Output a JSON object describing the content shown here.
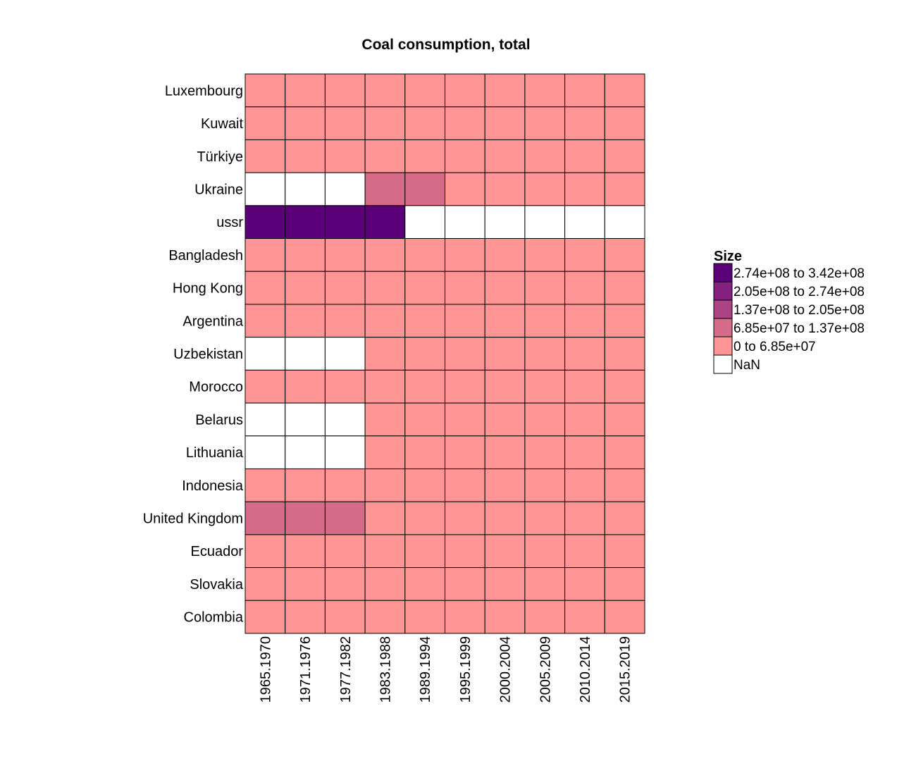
{
  "chart_data": {
    "type": "heatmap",
    "title": "Coal consumption, total",
    "rows": [
      "Luxembourg",
      "Kuwait",
      "Türkiye",
      "Ukraine",
      "ussr",
      "Bangladesh",
      "Hong Kong",
      "Argentina",
      "Uzbekistan",
      "Morocco",
      "Belarus",
      "Lithuania",
      "Indonesia",
      "United Kingdom",
      "Ecuador",
      "Slovakia",
      "Colombia"
    ],
    "columns": [
      "1965.1970",
      "1971.1976",
      "1977.1982",
      "1983.1988",
      "1989.1994",
      "1995.1999",
      "2000.2004",
      "2005.2009",
      "2010.2014",
      "2015.2019"
    ],
    "cell_bins": [
      [
        0,
        0,
        0,
        0,
        0,
        0,
        0,
        0,
        0,
        0
      ],
      [
        0,
        0,
        0,
        0,
        0,
        0,
        0,
        0,
        0,
        0
      ],
      [
        0,
        0,
        0,
        0,
        0,
        0,
        0,
        0,
        0,
        0
      ],
      [
        -1,
        -1,
        -1,
        1,
        1,
        0,
        0,
        0,
        0,
        0
      ],
      [
        4,
        4,
        4,
        4,
        -1,
        -1,
        -1,
        -1,
        -1,
        -1
      ],
      [
        0,
        0,
        0,
        0,
        0,
        0,
        0,
        0,
        0,
        0
      ],
      [
        0,
        0,
        0,
        0,
        0,
        0,
        0,
        0,
        0,
        0
      ],
      [
        0,
        0,
        0,
        0,
        0,
        0,
        0,
        0,
        0,
        0
      ],
      [
        -1,
        -1,
        -1,
        0,
        0,
        0,
        0,
        0,
        0,
        0
      ],
      [
        0,
        0,
        0,
        0,
        0,
        0,
        0,
        0,
        0,
        0
      ],
      [
        -1,
        -1,
        -1,
        0,
        0,
        0,
        0,
        0,
        0,
        0
      ],
      [
        -1,
        -1,
        -1,
        0,
        0,
        0,
        0,
        0,
        0,
        0
      ],
      [
        0,
        0,
        0,
        0,
        0,
        0,
        0,
        0,
        0,
        0
      ],
      [
        1,
        1,
        1,
        0,
        0,
        0,
        0,
        0,
        0,
        0
      ],
      [
        0,
        0,
        0,
        0,
        0,
        0,
        0,
        0,
        0,
        0
      ],
      [
        0,
        0,
        0,
        0,
        0,
        0,
        0,
        0,
        0,
        0
      ],
      [
        0,
        0,
        0,
        0,
        0,
        0,
        0,
        0,
        0,
        0
      ]
    ],
    "legend": {
      "title": "Size",
      "placement": "right",
      "items": [
        {
          "label": "2.74e+08 to 3.42e+08",
          "color": "#5c007a",
          "bin": 4
        },
        {
          "label": "2.05e+08 to 2.74e+08",
          "color": "#83217f",
          "bin": 3
        },
        {
          "label": "1.37e+08 to 2.05e+08",
          "color": "#aa4484",
          "bin": 2
        },
        {
          "label": "6.85e+07 to 1.37e+08",
          "color": "#d56b88",
          "bin": 1
        },
        {
          "label": "0 to 6.85e+07",
          "color": "#ff9595",
          "bin": 0
        },
        {
          "label": "NaN",
          "color": "#ffffff",
          "bin": -1
        }
      ]
    }
  }
}
